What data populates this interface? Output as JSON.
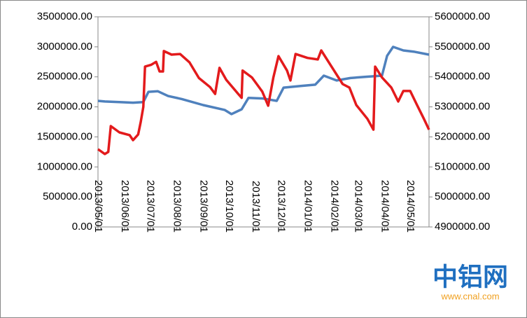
{
  "chart_data": {
    "type": "line",
    "x": [
      "2013/05/01",
      "2013/05/09",
      "2013/05/13",
      "2013/05/16",
      "2013/05/26",
      "2013/06/07",
      "2013/06/11",
      "2013/06/17",
      "2013/06/20",
      "2013/06/23",
      "2013/06/25",
      "2013/06/29",
      "2013/07/02",
      "2013/07/08",
      "2013/07/10",
      "2013/07/12",
      "2013/07/16",
      "2013/07/17",
      "2013/07/22",
      "2013/07/26",
      "2013/08/05",
      "2013/08/07",
      "2013/08/16",
      "2013/08/27",
      "2013/09/01",
      "2013/09/09",
      "2013/09/15",
      "2013/09/20",
      "2013/09/26",
      "2013/09/28",
      "2013/10/04",
      "2013/10/12",
      "2013/10/16",
      "2013/10/17",
      "2013/10/24",
      "2013/10/28",
      "2013/11/09",
      "2013/11/10",
      "2013/11/16",
      "2013/11/22",
      "2013/11/26",
      "2013/11/28",
      "2013/12/04",
      "2013/12/08",
      "2013/12/12",
      "2013/12/18",
      "2013/12/25",
      "2014/01/01",
      "2014/01/10",
      "2014/01/13",
      "2014/01/17",
      "2014/01/20",
      "2014/01/29",
      "2014/02/04",
      "2014/02/11",
      "2014/02/19",
      "2014/02/20",
      "2014/02/27",
      "2014/03/09",
      "2014/03/12",
      "2014/03/19",
      "2014/03/21",
      "2014/03/29",
      "2014/04/04",
      "2014/04/09",
      "2014/04/11",
      "2014/04/17",
      "2014/04/23",
      "2014/05/01",
      "2014/05/05",
      "2014/05/09",
      "2014/05/17",
      "2014/05/23"
    ],
    "series": [
      {
        "color": "#4f81bd",
        "values": [
          2100000,
          2090000,
          null,
          null,
          2080000,
          null,
          2070000,
          null,
          null,
          2080000,
          null,
          2250000,
          null,
          null,
          2260000,
          null,
          null,
          null,
          2180000,
          null,
          null,
          2130000,
          null,
          null,
          2030000,
          null,
          null,
          null,
          1950000,
          null,
          1880000,
          null,
          1960000,
          null,
          2150000,
          null,
          null,
          2140000,
          null,
          null,
          2100000,
          null,
          2320000,
          null,
          null,
          null,
          2350000,
          null,
          2370000,
          null,
          null,
          2520000,
          null,
          2440000,
          null,
          null,
          2480000,
          null,
          2500000,
          null,
          null,
          null,
          2520000,
          2850000,
          null,
          3000000,
          null,
          2940000,
          null,
          2920000,
          null,
          null,
          2870000
        ]
      },
      {
        "color": "#e31a1c",
        "axis": "y2",
        "values": [
          5159000,
          5143000,
          5150000,
          5236000,
          5215000,
          5206000,
          5189000,
          5208000,
          5250000,
          5300000,
          5434000,
          null,
          5440000,
          5450000,
          null,
          5418000,
          5418000,
          5486000,
          null,
          5474000,
          5476000,
          null,
          5448000,
          5396000,
          null,
          5366000,
          5343000,
          5430000,
          null,
          5390000,
          null,
          5343000,
          5330000,
          5421000,
          null,
          5398000,
          5351000,
          null,
          5304000,
          5398000,
          null,
          5469000,
          null,
          5421000,
          5388000,
          5476000,
          null,
          5463000,
          null,
          5458000,
          5488000,
          null,
          5434000,
          null,
          5376000,
          5364000,
          null,
          5306000,
          null,
          5260000,
          5224000,
          5434000,
          5398000,
          null,
          5364000,
          null,
          5318000,
          5353000,
          5353000,
          null,
          5306000,
          5260000,
          5224000
        ]
      }
    ],
    "xlim": [
      "2013/05/01",
      "2014/05/23"
    ],
    "xticks": [
      "2013/05/01",
      "2013/06/01",
      "2013/07/01",
      "2013/08/01",
      "2013/09/01",
      "2013/10/01",
      "2013/11/01",
      "2013/12/01",
      "2014/01/01",
      "2014/02/01",
      "2014/03/01",
      "2014/04/01",
      "2014/05/01"
    ],
    "ylim": [
      0,
      3500000
    ],
    "yticks": [
      {
        "value": 0,
        "label": "0.00"
      },
      {
        "value": 500000,
        "label": "500000.00"
      },
      {
        "value": 1000000,
        "label": "1000000.00"
      },
      {
        "value": 1500000,
        "label": "1500000.00"
      },
      {
        "value": 2000000,
        "label": "2000000.00"
      },
      {
        "value": 2500000,
        "label": "2500000.00"
      },
      {
        "value": 3000000,
        "label": "3000000.00"
      },
      {
        "value": 3500000,
        "label": "3500000.00"
      }
    ],
    "y2lim": [
      4900000,
      5600000
    ],
    "y2ticks": [
      {
        "value": 4900000,
        "label": "4900000.00"
      },
      {
        "value": 5000000,
        "label": "5000000.00"
      },
      {
        "value": 5100000,
        "label": "5100000.00"
      },
      {
        "value": 5200000,
        "label": "5200000.00"
      },
      {
        "value": 5300000,
        "label": "5300000.00"
      },
      {
        "value": 5400000,
        "label": "5400000.00"
      },
      {
        "value": 5500000,
        "label": "5500000.00"
      },
      {
        "value": 5600000,
        "label": "5600000.00"
      }
    ],
    "grid": false,
    "watermark": {
      "logo": "中铝网",
      "url": "www.cnal.com"
    }
  }
}
